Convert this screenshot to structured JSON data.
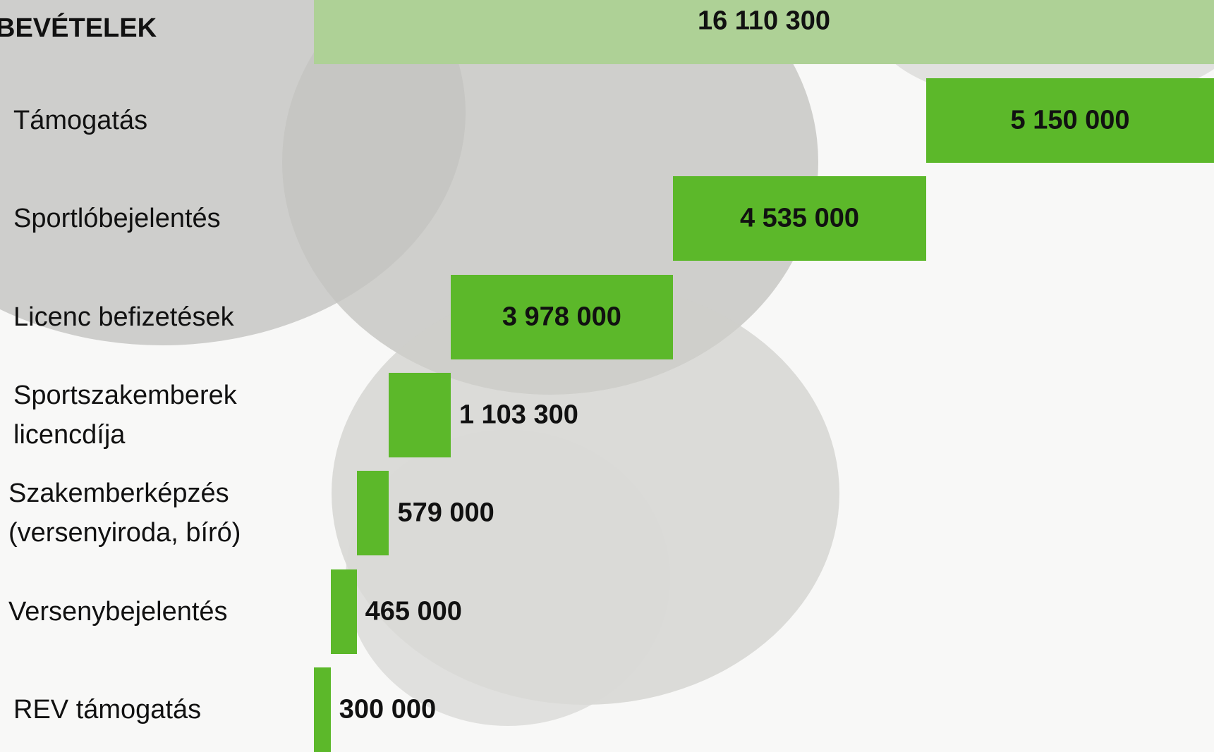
{
  "chart_data": {
    "type": "waterfall",
    "categories": [
      "BEVÉTELEK",
      "Támogatás",
      "Sportlóbejelentés",
      "Licenc befizetések",
      "Sportszakemberek\nlicencdíja",
      "Szakemberképzés\n(versenyiroda, bíró)",
      "Versenybejelentés",
      "REV támogatás"
    ],
    "values": [
      16110300,
      5150000,
      4535000,
      3978000,
      1103300,
      579000,
      465000,
      300000
    ],
    "value_labels": [
      "16 110 300",
      "5 150 000",
      "4 535 000",
      "3 978 000",
      "1 103 300",
      "579 000",
      "465 000",
      "300 000"
    ],
    "total_color": "#aed196",
    "color": "#5cb82a"
  }
}
